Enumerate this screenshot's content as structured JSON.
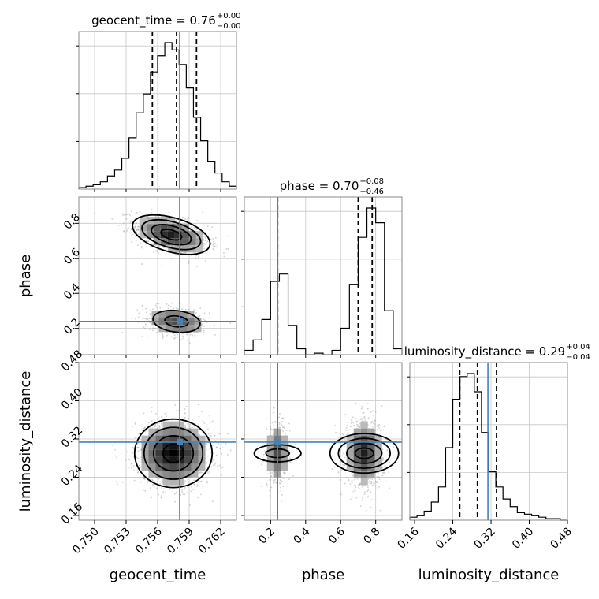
{
  "chart_data": {
    "type": "corner",
    "truth_color": "#4682b4",
    "parameters": [
      {
        "name": "geocent_time",
        "label": "geocent_time",
        "range": [
          0.7485,
          0.7635
        ],
        "ticks": [
          0.75,
          0.753,
          0.756,
          0.759,
          0.762
        ],
        "tick_labels": [
          "0.750",
          "0.753",
          "0.756",
          "0.759",
          "0.762"
        ],
        "truth": 0.7581,
        "title_prefix": "geocent_time = ",
        "title_median": "0.76",
        "title_plus": "+0.00",
        "title_minus": "−0.00",
        "quantiles": [
          0.7555,
          0.7578,
          0.7597
        ],
        "hist": [
          1,
          2,
          3,
          5,
          9,
          13,
          21,
          35,
          52,
          65,
          80,
          91,
          100,
          95,
          85,
          69,
          49,
          33,
          19,
          11,
          5,
          2
        ]
      },
      {
        "name": "phase",
        "label": "phase",
        "range": [
          0.05,
          0.95
        ],
        "ticks": [
          0.2,
          0.4,
          0.6,
          0.8
        ],
        "tick_labels": [
          "0.2",
          "0.4",
          "0.6",
          "0.8"
        ],
        "truth": 0.24,
        "title_prefix": "phase = ",
        "title_median": "0.70",
        "title_plus": "+0.08",
        "title_minus": "−0.46",
        "quantiles": [
          0.24,
          0.7,
          0.78
        ],
        "hist": [
          3,
          10,
          24,
          50,
          55,
          20,
          4,
          0,
          1,
          0,
          3,
          18,
          48,
          80,
          100,
          90,
          30,
          4
        ]
      },
      {
        "name": "luminosity_distance",
        "label": "luminosity_distance",
        "range": [
          0.15,
          0.48
        ],
        "ticks": [
          0.16,
          0.24,
          0.32,
          0.4,
          0.48
        ],
        "tick_labels": [
          "0.16",
          "0.24",
          "0.32",
          "0.40",
          "0.48"
        ],
        "truth": 0.3135,
        "title_prefix": "luminosity_distance = ",
        "title_median": "0.29",
        "title_plus": "+0.04",
        "title_minus": "−0.04",
        "quantiles": [
          0.2545,
          0.2915,
          0.3315
        ],
        "hist": [
          2,
          3,
          6,
          12,
          22,
          48,
          80,
          95,
          97,
          85,
          58,
          32,
          22,
          14,
          9,
          5,
          4,
          3,
          2,
          1,
          1,
          0
        ]
      }
    ],
    "blobs": [
      {
        "params": [
          0,
          1
        ],
        "cx": 0.7573,
        "cy": 0.735,
        "sx": 0.0018,
        "sy": 0.055,
        "rho": -0.45,
        "w": 0.72
      },
      {
        "params": [
          0,
          1
        ],
        "cx": 0.7578,
        "cy": 0.24,
        "sx": 0.0016,
        "sy": 0.045,
        "rho": -0.2,
        "w": 0.28
      },
      {
        "params": [
          0,
          2
        ],
        "cx": 0.7575,
        "cy": 0.29,
        "sx": 0.0018,
        "sy": 0.035,
        "rho": 0.0,
        "w": 1.0
      },
      {
        "params": [
          1,
          2
        ],
        "cx": 0.735,
        "cy": 0.29,
        "sx": 0.055,
        "sy": 0.035,
        "rho": 0.0,
        "w": 0.72
      },
      {
        "params": [
          1,
          2
        ],
        "cx": 0.24,
        "cy": 0.29,
        "sx": 0.035,
        "sy": 0.035,
        "rho": 0.0,
        "w": 0.28
      }
    ]
  }
}
